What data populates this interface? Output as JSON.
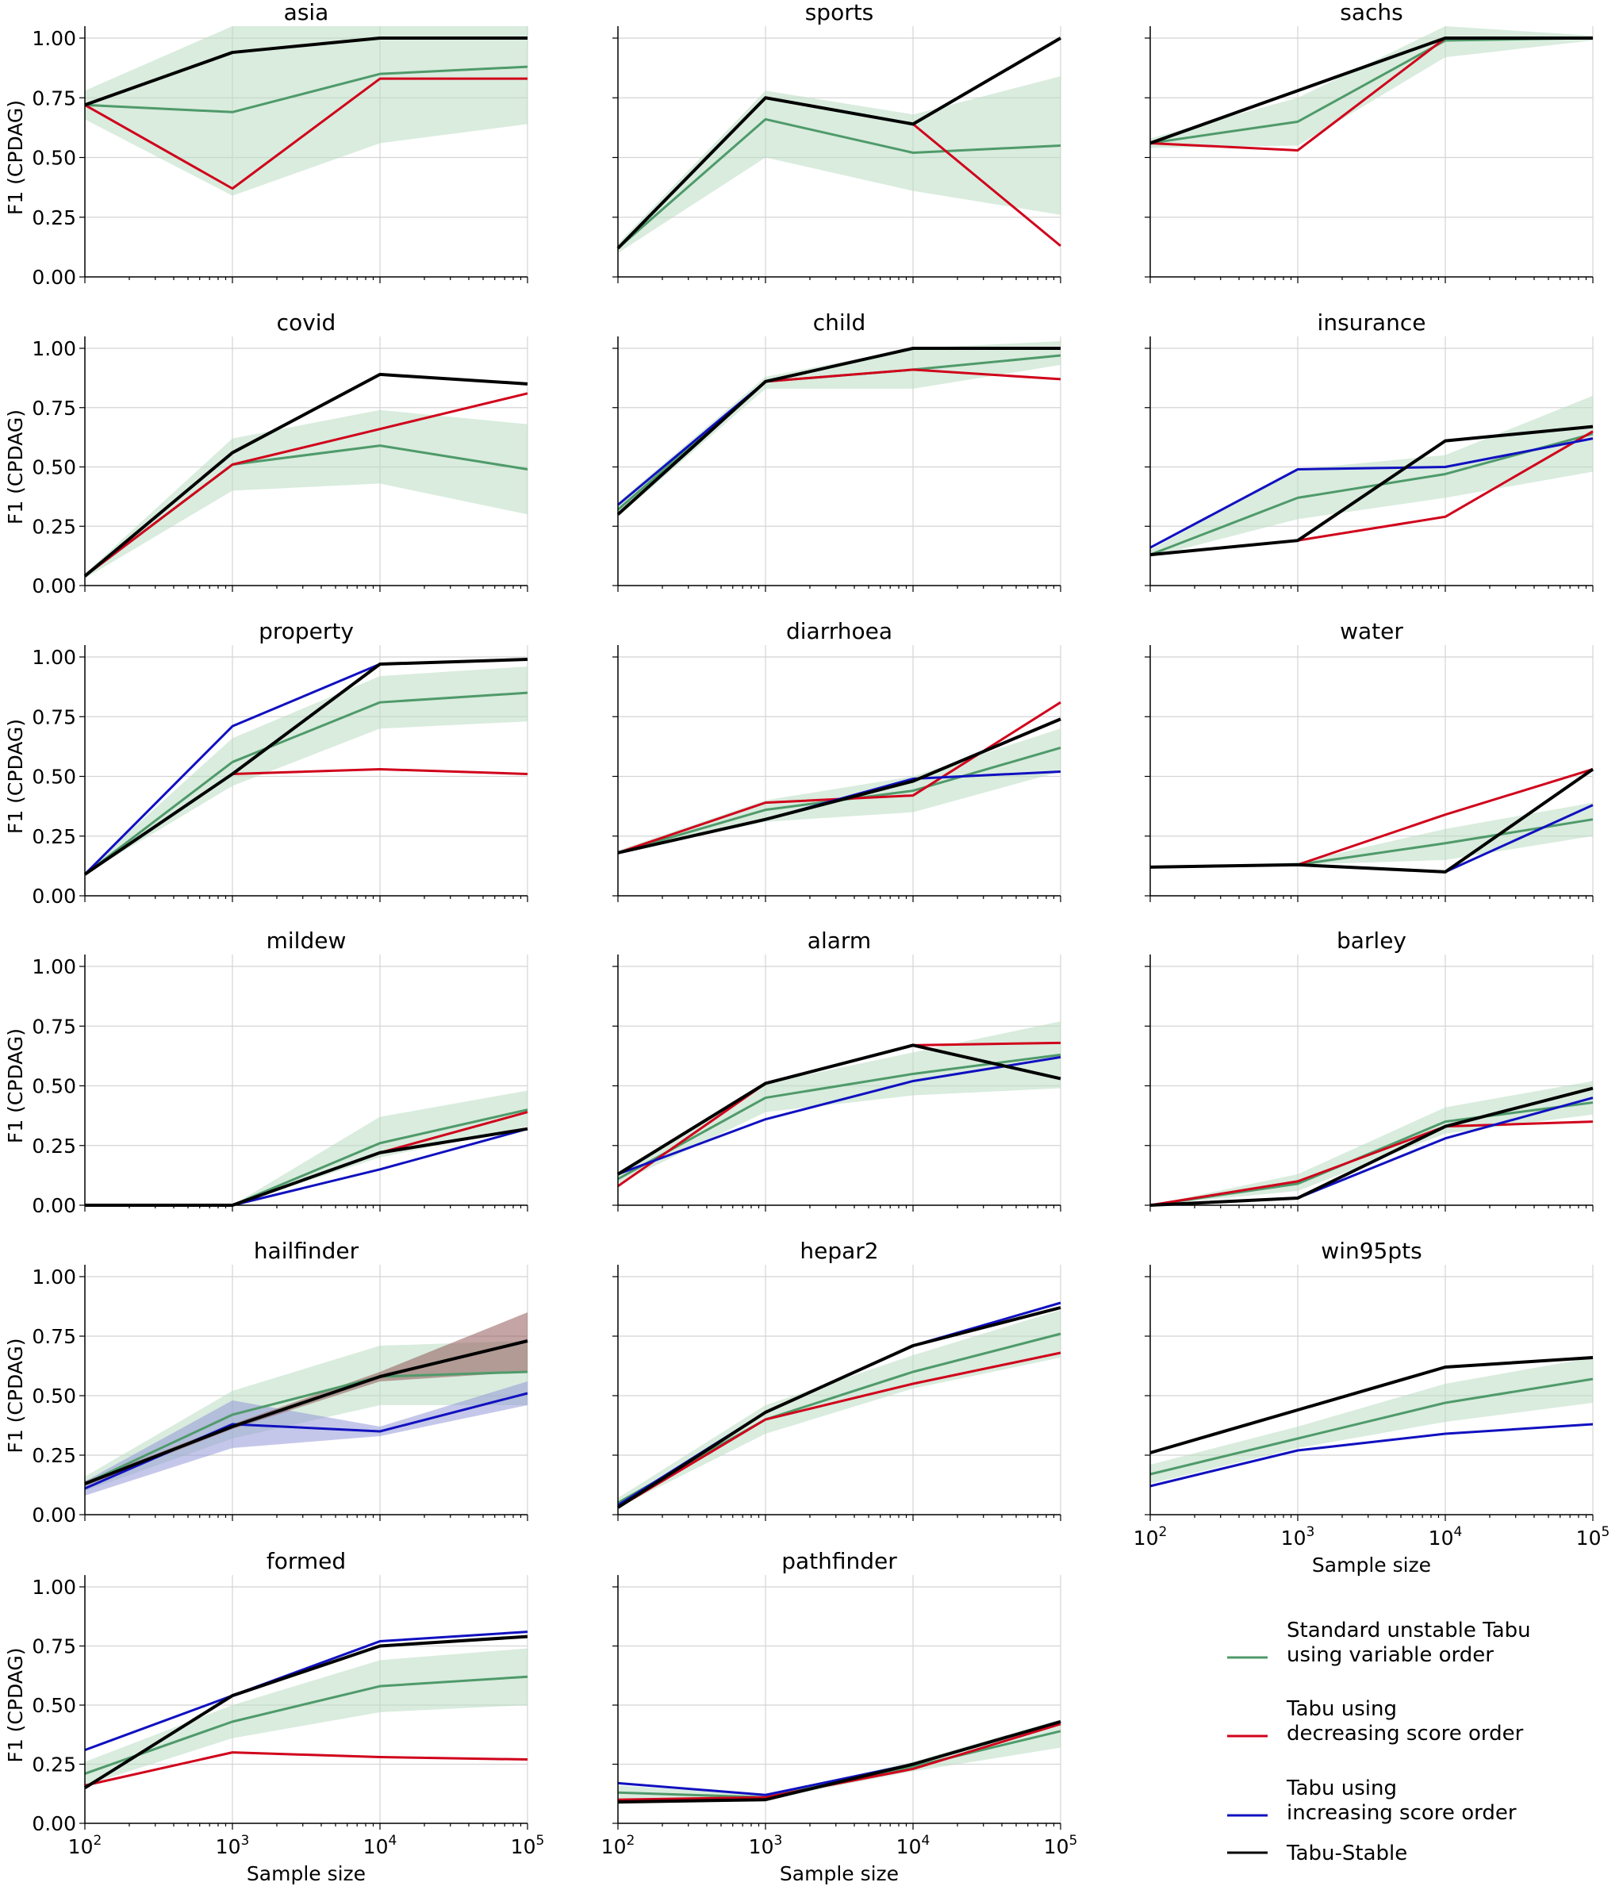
{
  "chart_data": {
    "type": "line",
    "layout": "6x3 small multiples",
    "x": [
      100,
      1000,
      10000,
      100000
    ],
    "x_tick_labels": [
      {
        "base": "10",
        "exp": "2"
      },
      {
        "base": "10",
        "exp": "3"
      },
      {
        "base": "10",
        "exp": "4"
      },
      {
        "base": "10",
        "exp": "5"
      }
    ],
    "xscale": "log",
    "xlim": [
      100,
      100000
    ],
    "ylim": [
      0,
      1.05
    ],
    "y_ticks": [
      "0.00",
      "0.25",
      "0.50",
      "0.75",
      "1.00"
    ],
    "y_tick_values": [
      0,
      0.25,
      0.5,
      0.75,
      1.0
    ],
    "ylabel": "F1 (CPDAG)",
    "xlabel": "Sample size",
    "grid": true,
    "legend": {
      "placement": "bottom-right",
      "entries": [
        {
          "key": "standard",
          "lines": [
            "Standard unstable Tabu",
            "using variable order"
          ],
          "color": "#4f9a6a"
        },
        {
          "key": "decreasing",
          "lines": [
            "Tabu using",
            "decreasing score order"
          ],
          "color": "#d0021b"
        },
        {
          "key": "increasing",
          "lines": [
            "Tabu using",
            "increasing score order"
          ],
          "color": "#1010c0"
        },
        {
          "key": "stable",
          "lines": [
            "Tabu-Stable"
          ],
          "color": "#000000"
        }
      ]
    },
    "band_colors": {
      "standard": "#b9dcc2",
      "increasing": "#8c8fd6",
      "decreasing": "#8a4a4a"
    },
    "panels": [
      {
        "title": "asia",
        "series": {
          "standard": [
            0.72,
            0.69,
            0.85,
            0.88
          ],
          "decreasing": [
            0.72,
            0.37,
            0.83,
            0.83
          ],
          "stable": [
            0.72,
            0.94,
            1.0,
            1.0
          ]
        },
        "band": {
          "standard": {
            "lo": [
              0.66,
              0.34,
              0.56,
              0.64
            ],
            "hi": [
              0.78,
              1.05,
              1.05,
              1.05
            ]
          }
        }
      },
      {
        "title": "sports",
        "series": {
          "standard": [
            0.12,
            0.66,
            0.52,
            0.55
          ],
          "decreasing": [
            0.12,
            0.75,
            0.64,
            0.13
          ],
          "stable": [
            0.12,
            0.75,
            0.64,
            1.0
          ]
        },
        "band": {
          "standard": {
            "lo": [
              0.1,
              0.5,
              0.36,
              0.26
            ],
            "hi": [
              0.14,
              0.78,
              0.68,
              0.84
            ]
          }
        }
      },
      {
        "title": "sachs",
        "series": {
          "standard": [
            0.56,
            0.65,
            0.99,
            1.0
          ],
          "decreasing": [
            0.56,
            0.53,
            1.0,
            1.0
          ],
          "stable": [
            0.56,
            0.78,
            1.0,
            1.0
          ]
        },
        "band": {
          "standard": {
            "lo": [
              0.54,
              0.55,
              0.92,
              0.99
            ],
            "hi": [
              0.58,
              0.75,
              1.05,
              1.01
            ]
          }
        }
      },
      {
        "title": "covid",
        "series": {
          "standard": [
            0.04,
            0.51,
            0.59,
            0.49
          ],
          "decreasing": [
            0.04,
            0.51,
            0.66,
            0.81
          ],
          "stable": [
            0.04,
            0.56,
            0.89,
            0.85
          ]
        },
        "band": {
          "standard": {
            "lo": [
              0.03,
              0.4,
              0.43,
              0.3
            ],
            "hi": [
              0.05,
              0.62,
              0.74,
              0.68
            ]
          }
        }
      },
      {
        "title": "child",
        "series": {
          "standard": [
            0.32,
            0.86,
            0.91,
            0.97
          ],
          "decreasing": [
            0.3,
            0.86,
            0.91,
            0.87
          ],
          "increasing": [
            0.34,
            0.86,
            1.0,
            1.0
          ],
          "stable": [
            0.3,
            0.86,
            1.0,
            1.0
          ]
        },
        "band": {
          "standard": {
            "lo": [
              0.29,
              0.83,
              0.83,
              0.93
            ],
            "hi": [
              0.35,
              0.88,
              1.0,
              1.03
            ]
          }
        }
      },
      {
        "title": "insurance",
        "series": {
          "standard": [
            0.13,
            0.37,
            0.47,
            0.64
          ],
          "decreasing": [
            0.13,
            0.19,
            0.29,
            0.65
          ],
          "increasing": [
            0.16,
            0.49,
            0.5,
            0.62
          ],
          "stable": [
            0.13,
            0.19,
            0.61,
            0.67
          ]
        },
        "band": {
          "standard": {
            "lo": [
              0.12,
              0.28,
              0.37,
              0.48
            ],
            "hi": [
              0.15,
              0.49,
              0.55,
              0.8
            ]
          }
        }
      },
      {
        "title": "property",
        "series": {
          "standard": [
            0.09,
            0.56,
            0.81,
            0.85
          ],
          "decreasing": [
            0.09,
            0.51,
            0.53,
            0.51
          ],
          "increasing": [
            0.09,
            0.71,
            0.97,
            0.99
          ],
          "stable": [
            0.09,
            0.51,
            0.97,
            0.99
          ]
        },
        "band": {
          "standard": {
            "lo": [
              0.09,
              0.46,
              0.7,
              0.73
            ],
            "hi": [
              0.1,
              0.66,
              0.92,
              0.96
            ]
          }
        }
      },
      {
        "title": "diarrhoea",
        "series": {
          "standard": [
            0.18,
            0.36,
            0.44,
            0.62
          ],
          "decreasing": [
            0.18,
            0.39,
            0.42,
            0.81
          ],
          "increasing": [
            0.18,
            0.32,
            0.49,
            0.52
          ],
          "stable": [
            0.18,
            0.32,
            0.48,
            0.74
          ]
        },
        "band": {
          "standard": {
            "lo": [
              0.18,
              0.31,
              0.35,
              0.52
            ],
            "hi": [
              0.19,
              0.4,
              0.5,
              0.7
            ]
          }
        }
      },
      {
        "title": "water",
        "series": {
          "standard": [
            0.12,
            0.13,
            0.22,
            0.32
          ],
          "decreasing": [
            0.12,
            0.13,
            0.34,
            0.53
          ],
          "increasing": [
            0.12,
            0.13,
            0.1,
            0.38
          ],
          "stable": [
            0.12,
            0.13,
            0.1,
            0.53
          ]
        },
        "band": {
          "standard": {
            "lo": [
              0.12,
              0.13,
              0.15,
              0.25
            ],
            "hi": [
              0.12,
              0.14,
              0.28,
              0.39
            ]
          }
        }
      },
      {
        "title": "mildew",
        "series": {
          "standard": [
            0.0,
            0.0,
            0.26,
            0.4
          ],
          "decreasing": [
            0.0,
            0.0,
            0.22,
            0.39
          ],
          "increasing": [
            0.0,
            0.0,
            0.15,
            0.32
          ],
          "stable": [
            0.0,
            0.0,
            0.22,
            0.32
          ]
        },
        "band": {
          "standard": {
            "lo": [
              0.0,
              0.0,
              0.2,
              0.33
            ],
            "hi": [
              0.0,
              0.0,
              0.37,
              0.48
            ]
          }
        }
      },
      {
        "title": "alarm",
        "series": {
          "standard": [
            0.11,
            0.45,
            0.55,
            0.63
          ],
          "decreasing": [
            0.08,
            0.51,
            0.67,
            0.68
          ],
          "increasing": [
            0.13,
            0.36,
            0.52,
            0.62
          ],
          "stable": [
            0.13,
            0.51,
            0.67,
            0.53
          ]
        },
        "band": {
          "standard": {
            "lo": [
              0.09,
              0.39,
              0.46,
              0.49
            ],
            "hi": [
              0.13,
              0.51,
              0.64,
              0.77
            ]
          }
        }
      },
      {
        "title": "barley",
        "series": {
          "standard": [
            0.0,
            0.09,
            0.35,
            0.43
          ],
          "decreasing": [
            0.0,
            0.1,
            0.33,
            0.35
          ],
          "increasing": [
            0.0,
            0.03,
            0.28,
            0.45
          ],
          "stable": [
            0.0,
            0.03,
            0.33,
            0.49
          ]
        },
        "band": {
          "standard": {
            "lo": [
              0.0,
              0.06,
              0.3,
              0.38
            ],
            "hi": [
              0.0,
              0.13,
              0.41,
              0.52
            ]
          }
        }
      },
      {
        "title": "hailfinder",
        "series": {
          "standard": [
            0.13,
            0.42,
            0.58,
            0.6
          ],
          "decreasing": [
            0.13,
            0.37,
            0.58,
            0.73
          ],
          "increasing": [
            0.11,
            0.38,
            0.35,
            0.51
          ],
          "stable": [
            0.13,
            0.37,
            0.58,
            0.73
          ]
        },
        "band": {
          "standard": {
            "lo": [
              0.1,
              0.32,
              0.46,
              0.46
            ],
            "hi": [
              0.16,
              0.52,
              0.71,
              0.73
            ]
          },
          "increasing": {
            "lo": [
              0.08,
              0.28,
              0.33,
              0.46
            ],
            "hi": [
              0.14,
              0.48,
              0.37,
              0.56
            ]
          },
          "decreasing": {
            "lo": [
              0.12,
              0.36,
              0.56,
              0.6
            ],
            "hi": [
              0.14,
              0.38,
              0.6,
              0.85
            ]
          }
        }
      },
      {
        "title": "hepar2",
        "series": {
          "standard": [
            0.05,
            0.4,
            0.6,
            0.76
          ],
          "decreasing": [
            0.03,
            0.4,
            0.55,
            0.68
          ],
          "increasing": [
            0.04,
            0.43,
            0.71,
            0.89
          ],
          "stable": [
            0.03,
            0.43,
            0.71,
            0.87
          ]
        },
        "band": {
          "standard": {
            "lo": [
              0.03,
              0.34,
              0.53,
              0.66
            ],
            "hi": [
              0.07,
              0.46,
              0.67,
              0.86
            ]
          }
        }
      },
      {
        "title": "win95pts",
        "series": {
          "standard": [
            0.17,
            0.32,
            0.47,
            0.57
          ],
          "decreasing": [
            0.26,
            0.44,
            0.62,
            0.66
          ],
          "increasing": [
            0.12,
            0.27,
            0.34,
            0.38
          ],
          "stable": [
            0.26,
            0.44,
            0.62,
            0.66
          ]
        },
        "band": {
          "standard": {
            "lo": [
              0.13,
              0.28,
              0.39,
              0.47
            ],
            "hi": [
              0.21,
              0.37,
              0.55,
              0.66
            ]
          }
        }
      },
      {
        "title": "formed",
        "series": {
          "standard": [
            0.21,
            0.43,
            0.58,
            0.62
          ],
          "decreasing": [
            0.16,
            0.3,
            0.28,
            0.27
          ],
          "increasing": [
            0.31,
            0.54,
            0.77,
            0.81
          ],
          "stable": [
            0.15,
            0.54,
            0.75,
            0.79
          ]
        },
        "band": {
          "standard": {
            "lo": [
              0.16,
              0.36,
              0.47,
              0.5
            ],
            "hi": [
              0.26,
              0.5,
              0.69,
              0.74
            ]
          }
        }
      },
      {
        "title": "pathfinder",
        "series": {
          "standard": [
            0.13,
            0.11,
            0.24,
            0.39
          ],
          "decreasing": [
            0.1,
            0.11,
            0.23,
            0.42
          ],
          "increasing": [
            0.17,
            0.12,
            0.25,
            0.43
          ],
          "stable": [
            0.09,
            0.1,
            0.25,
            0.43
          ]
        },
        "band": {
          "standard": {
            "lo": [
              0.1,
              0.1,
              0.22,
              0.32
            ],
            "hi": [
              0.16,
              0.12,
              0.26,
              0.44
            ]
          }
        }
      }
    ]
  }
}
